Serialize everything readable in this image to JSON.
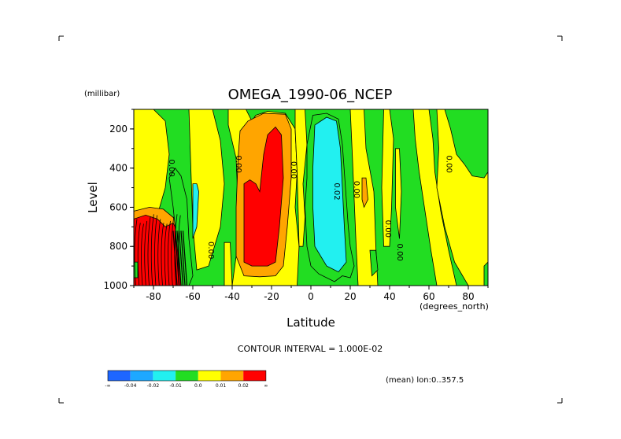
{
  "chart_data": {
    "type": "contour",
    "title": "OMEGA_1990-06_NCEP",
    "xlabel": "Latitude",
    "x_units": "(degrees_north)",
    "ylabel": "Level",
    "y_units": "(millibar)",
    "x_range": [
      -90,
      90
    ],
    "y_range": [
      100,
      1000
    ],
    "y_inverted": true,
    "x_ticks": [
      -80,
      -60,
      -40,
      -20,
      0,
      20,
      40,
      60,
      80
    ],
    "x_tick_labels": [
      "-80",
      "-60",
      "-40",
      "-20",
      "0",
      "20",
      "40",
      "60",
      "80"
    ],
    "y_ticks": [
      200,
      400,
      600,
      800,
      1000
    ],
    "y_tick_labels": [
      "200",
      "400",
      "600",
      "800",
      "1000"
    ],
    "contour_interval_text": "CONTOUR INTERVAL = 1.000E-02",
    "subtitle_note": "(mean) lon:0..357.5",
    "contour_labels": [
      {
        "text": "0.00",
        "lat": -72,
        "lev": 400
      },
      {
        "text": "0.00",
        "lat": -52,
        "lev": 820
      },
      {
        "text": "0.00",
        "lat": -38,
        "lev": 380
      },
      {
        "text": "0.00",
        "lat": -10,
        "lev": 410
      },
      {
        "text": "0.02",
        "lat": 12,
        "lev": 520
      },
      {
        "text": "0.00",
        "lat": 22,
        "lev": 510
      },
      {
        "text": "0.00",
        "lat": 38,
        "lev": 710
      },
      {
        "text": "0.00",
        "lat": 44,
        "lev": 830
      },
      {
        "text": "0.00",
        "lat": 69,
        "lev": 380
      }
    ],
    "colorbar": {
      "labels": [
        "-∞",
        "-0.04",
        "-0.02",
        "-0.01",
        "0.0",
        "0.01",
        "0.02",
        "∞"
      ],
      "colors": [
        "#1e66ff",
        "#1ea8ff",
        "#22f0f0",
        "#22dd22",
        "#ffff00",
        "#ffa500",
        "#ff0000"
      ]
    },
    "regions": [
      {
        "level_index": 2,
        "points": [
          [
            -90,
            200
          ],
          [
            -88,
            480
          ],
          [
            -90,
            560
          ]
        ]
      },
      {
        "level_index": 4,
        "points": [
          [
            -90,
            100
          ],
          [
            -80,
            100
          ],
          [
            -74,
            160
          ],
          [
            -72,
            330
          ],
          [
            -74,
            500
          ],
          [
            -78,
            640
          ],
          [
            -90,
            620
          ]
        ]
      },
      {
        "level_index": 4,
        "points": [
          [
            -62,
            100
          ],
          [
            -50,
            100
          ],
          [
            -46,
            260
          ],
          [
            -44,
            480
          ],
          [
            -46,
            700
          ],
          [
            -52,
            900
          ],
          [
            -58,
            920
          ],
          [
            -60,
            700
          ]
        ]
      },
      {
        "level_index": 4,
        "points": [
          [
            -44,
            780
          ],
          [
            -41,
            780
          ],
          [
            -40,
            1000
          ],
          [
            -44,
            1000
          ]
        ]
      },
      {
        "level_index": 4,
        "points": [
          [
            -42,
            100
          ],
          [
            -33,
            100
          ],
          [
            -30,
            160
          ],
          [
            -28,
            130
          ],
          [
            -22,
            110
          ],
          [
            -13,
            120
          ],
          [
            -8,
            200
          ],
          [
            -7,
            420
          ],
          [
            -8,
            600
          ],
          [
            -6,
            800
          ],
          [
            -7,
            1000
          ],
          [
            -40,
            1000
          ],
          [
            -38,
            850
          ],
          [
            -37,
            600
          ],
          [
            -38,
            350
          ],
          [
            -42,
            180
          ]
        ]
      },
      {
        "level_index": 4,
        "points": [
          [
            -8,
            100
          ],
          [
            -3,
            100
          ],
          [
            -2,
            280
          ],
          [
            -4,
            480
          ],
          [
            -3,
            650
          ],
          [
            -4,
            800
          ],
          [
            -6,
            800
          ],
          [
            -7,
            420
          ],
          [
            -8,
            200
          ]
        ]
      },
      {
        "level_index": 4,
        "points": [
          [
            20,
            100
          ],
          [
            27,
            100
          ],
          [
            28,
            300
          ],
          [
            32,
            520
          ],
          [
            33,
            800
          ],
          [
            34,
            1000
          ],
          [
            24,
            1000
          ],
          [
            23,
            800
          ],
          [
            22,
            560
          ],
          [
            21,
            320
          ]
        ]
      },
      {
        "level_index": 4,
        "points": [
          [
            37,
            100
          ],
          [
            40,
            100
          ],
          [
            42,
            250
          ],
          [
            41,
            600
          ],
          [
            40,
            800
          ],
          [
            37,
            800
          ],
          [
            36,
            500
          ]
        ]
      },
      {
        "level_index": 4,
        "points": [
          [
            43,
            300
          ],
          [
            45,
            300
          ],
          [
            46,
            520
          ],
          [
            45,
            760
          ],
          [
            43,
            600
          ]
        ]
      },
      {
        "level_index": 4,
        "points": [
          [
            52,
            100
          ],
          [
            60,
            100
          ],
          [
            62,
            250
          ],
          [
            63,
            420
          ],
          [
            66,
            620
          ],
          [
            70,
            820
          ],
          [
            74,
            1000
          ],
          [
            64,
            1000
          ],
          [
            61,
            820
          ],
          [
            58,
            620
          ],
          [
            55,
            420
          ],
          [
            53,
            250
          ]
        ]
      },
      {
        "level_index": 4,
        "points": [
          [
            64,
            100
          ],
          [
            68,
            100
          ],
          [
            71,
            200
          ],
          [
            74,
            330
          ],
          [
            78,
            380
          ],
          [
            82,
            440
          ],
          [
            88,
            450
          ],
          [
            90,
            420
          ],
          [
            90,
            1000
          ],
          [
            80,
            1000
          ],
          [
            73,
            880
          ],
          [
            68,
            700
          ],
          [
            64,
            500
          ],
          [
            65,
            300
          ]
        ]
      },
      {
        "level_index": 5,
        "points": [
          [
            -90,
            620
          ],
          [
            -82,
            600
          ],
          [
            -75,
            610
          ],
          [
            -69,
            660
          ],
          [
            -66,
            720
          ],
          [
            -70,
            780
          ],
          [
            -76,
            740
          ],
          [
            -82,
            720
          ],
          [
            -90,
            700
          ]
        ]
      },
      {
        "level_index": 5,
        "points": [
          [
            -36,
            210
          ],
          [
            -32,
            160
          ],
          [
            -24,
            120
          ],
          [
            -13,
            125
          ],
          [
            -10,
            200
          ],
          [
            -10,
            450
          ],
          [
            -12,
            700
          ],
          [
            -14,
            900
          ],
          [
            -18,
            950
          ],
          [
            -26,
            955
          ],
          [
            -34,
            950
          ],
          [
            -38,
            850
          ],
          [
            -38,
            600
          ],
          [
            -37,
            350
          ]
        ]
      },
      {
        "level_index": 5,
        "points": [
          [
            26,
            450
          ],
          [
            28,
            450
          ],
          [
            29,
            560
          ],
          [
            27,
            600
          ],
          [
            26,
            560
          ]
        ]
      },
      {
        "level_index": 6,
        "points": [
          [
            -90,
            660
          ],
          [
            -84,
            640
          ],
          [
            -78,
            660
          ],
          [
            -74,
            700
          ],
          [
            -70,
            680
          ],
          [
            -68,
            720
          ],
          [
            -66,
            800
          ],
          [
            -64,
            1000
          ],
          [
            -90,
            1000
          ]
        ]
      },
      {
        "level_index": 6,
        "points": [
          [
            -34,
            480
          ],
          [
            -31,
            460
          ],
          [
            -28,
            480
          ],
          [
            -26,
            520
          ],
          [
            -24,
            330
          ],
          [
            -22,
            230
          ],
          [
            -18,
            190
          ],
          [
            -15,
            230
          ],
          [
            -14,
            450
          ],
          [
            -16,
            700
          ],
          [
            -18,
            880
          ],
          [
            -22,
            900
          ],
          [
            -30,
            900
          ],
          [
            -34,
            880
          ],
          [
            -34,
            700
          ]
        ]
      },
      {
        "level_index": 3,
        "points": [
          [
            -72,
            450
          ],
          [
            -69,
            400
          ],
          [
            -66,
            440
          ],
          [
            -63,
            560
          ],
          [
            -62,
            760
          ],
          [
            -60,
            950
          ],
          [
            -62,
            1000
          ],
          [
            -66,
            1000
          ],
          [
            -68,
            800
          ],
          [
            -70,
            600
          ]
        ]
      },
      {
        "level_index": 3,
        "points": [
          [
            -90,
            880
          ],
          [
            -88,
            880
          ],
          [
            -88,
            960
          ],
          [
            -90,
            960
          ]
        ]
      },
      {
        "level_index": 3,
        "points": [
          [
            -2,
            280
          ],
          [
            1,
            130
          ],
          [
            8,
            120
          ],
          [
            14,
            150
          ],
          [
            16,
            280
          ],
          [
            17,
            420
          ],
          [
            19,
            700
          ],
          [
            20,
            800
          ],
          [
            22,
            900
          ],
          [
            20,
            960
          ],
          [
            16,
            950
          ],
          [
            12,
            980
          ],
          [
            4,
            940
          ],
          [
            0,
            900
          ],
          [
            -2,
            800
          ],
          [
            -3,
            600
          ],
          [
            -2,
            450
          ]
        ]
      },
      {
        "level_index": 3,
        "points": [
          [
            30,
            820
          ],
          [
            33,
            820
          ],
          [
            34,
            920
          ],
          [
            31,
            950
          ]
        ]
      },
      {
        "level_index": 3,
        "points": [
          [
            88,
            900
          ],
          [
            90,
            880
          ],
          [
            90,
            1000
          ],
          [
            88,
            1000
          ]
        ]
      },
      {
        "level_index": 2,
        "points": [
          [
            2,
            180
          ],
          [
            8,
            140
          ],
          [
            13,
            160
          ],
          [
            15,
            300
          ],
          [
            16,
            500
          ],
          [
            17,
            700
          ],
          [
            18,
            880
          ],
          [
            14,
            930
          ],
          [
            8,
            900
          ],
          [
            2,
            800
          ],
          [
            1,
            600
          ],
          [
            1,
            400
          ]
        ]
      },
      {
        "level_index": 2,
        "points": [
          [
            -60,
            480
          ],
          [
            -58,
            480
          ],
          [
            -57,
            520
          ],
          [
            -58,
            700
          ],
          [
            -60,
            760
          ]
        ]
      }
    ]
  }
}
